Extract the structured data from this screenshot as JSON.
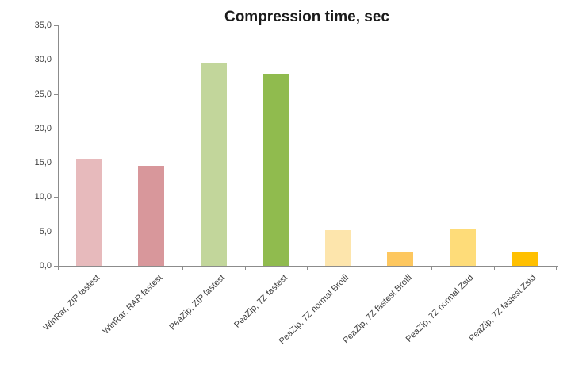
{
  "chart_data": {
    "type": "bar",
    "title": "Compression time, sec",
    "categories": [
      "WinRar, ZIP fastest",
      "WinRar, RAR fastest",
      "PeaZip, ZIP fastest",
      "PeaZip, 7Z fastest",
      "PeaZip, 7Z normal Brotli",
      "PeaZip, 7Z fastest Brotli",
      "PeaZip, 7Z normal Zstd",
      "PeaZip, 7Z fastest Zstd"
    ],
    "values": [
      15.5,
      14.5,
      29.5,
      28.0,
      5.2,
      2.0,
      5.4,
      2.0
    ],
    "bar_colors": [
      "#E7BABC",
      "#D8979B",
      "#C2D69B",
      "#90BB4E",
      "#FDE5AC",
      "#FDC75F",
      "#FEDC79",
      "#FFC000"
    ],
    "xlabel": "",
    "ylabel": "",
    "ylim": [
      0,
      35
    ],
    "ytick_step": 5,
    "ytick_labels": [
      "0,0",
      "5,0",
      "10,0",
      "15,0",
      "20,0",
      "25,0",
      "30,0",
      "35,0"
    ],
    "grid": false,
    "legend_position": "none",
    "colors": {
      "axis": "#8C8C8C",
      "tick_label": "#3F3F3F",
      "title": "#1A1A1A",
      "background": "#FFFFFF"
    }
  }
}
